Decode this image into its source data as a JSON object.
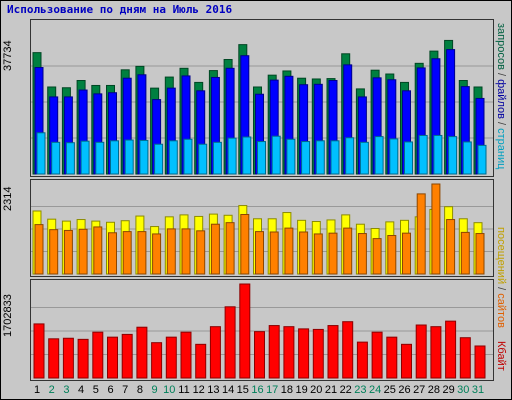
{
  "title": "Использование по дням на Июль 2016",
  "legend": {
    "top": [
      {
        "text": "запросов",
        "color": "#006040"
      },
      {
        "text": " / ",
        "color": "#404040"
      },
      {
        "text": "файлов",
        "color": "#0000a0"
      },
      {
        "text": " / ",
        "color": "#404040"
      },
      {
        "text": "страниц",
        "color": "#00a0c0"
      }
    ],
    "mid": [
      {
        "text": "посещений",
        "color": "#c0a000"
      },
      {
        "text": " / ",
        "color": "#404040"
      },
      {
        "text": "сайтов",
        "color": "#e06000"
      }
    ],
    "bot": [
      {
        "text": "Кбайт",
        "color": "#c00000"
      }
    ]
  },
  "colors": {
    "hits": "#008040",
    "files": "#0000ff",
    "pages": "#00c0ff",
    "visits": "#ffff00",
    "sites": "#ff8000",
    "kbytes": "#ff0000",
    "weekday_label": "#000000",
    "weekend_label": "#00805a"
  },
  "chart_data": [
    {
      "type": "bar",
      "name": "hits / files / pages",
      "ymax_label": "37734",
      "ylim": [
        0,
        37734
      ],
      "categories": [
        "1",
        "2",
        "3",
        "4",
        "5",
        "6",
        "7",
        "8",
        "9",
        "10",
        "11",
        "12",
        "13",
        "14",
        "15",
        "16",
        "17",
        "18",
        "19",
        "20",
        "21",
        "22",
        "23",
        "24",
        "25",
        "26",
        "27",
        "28",
        "29",
        "30",
        "31"
      ],
      "weekend": [
        false,
        true,
        true,
        false,
        false,
        false,
        false,
        false,
        true,
        true,
        false,
        false,
        false,
        false,
        false,
        true,
        true,
        false,
        false,
        false,
        false,
        false,
        true,
        true,
        false,
        false,
        false,
        false,
        false,
        true,
        true
      ],
      "series": [
        {
          "name": "запросов",
          "values": [
            31800,
            22800,
            22600,
            24500,
            23200,
            23200,
            27300,
            28200,
            22500,
            25400,
            27700,
            24000,
            27100,
            30000,
            33900,
            22800,
            25900,
            27000,
            25100,
            24900,
            25000,
            31500,
            22300,
            27200,
            26200,
            24000,
            29000,
            32200,
            35000,
            24500,
            22800
          ]
        },
        {
          "name": "файлов",
          "values": [
            27900,
            20200,
            20200,
            22000,
            21000,
            21300,
            25100,
            26000,
            19500,
            22500,
            25700,
            21800,
            25300,
            27700,
            31000,
            20900,
            24600,
            25600,
            23400,
            23500,
            24500,
            28600,
            20200,
            25200,
            24700,
            21800,
            27800,
            30200,
            32600,
            22900,
            19800
          ]
        },
        {
          "name": "страниц",
          "values": [
            10800,
            8300,
            8200,
            8600,
            8300,
            8700,
            8900,
            8800,
            7800,
            8700,
            9100,
            7800,
            8300,
            9400,
            9700,
            8500,
            9900,
            9100,
            8500,
            8700,
            8700,
            9500,
            8300,
            9800,
            9200,
            8400,
            10100,
            10100,
            9800,
            8400,
            7500
          ]
        }
      ]
    },
    {
      "type": "bar",
      "name": "visits / sites",
      "ymax_label": "2314",
      "ylim": [
        0,
        2314
      ],
      "categories": [
        "1",
        "2",
        "3",
        "4",
        "5",
        "6",
        "7",
        "8",
        "9",
        "10",
        "11",
        "12",
        "13",
        "14",
        "15",
        "16",
        "17",
        "18",
        "19",
        "20",
        "21",
        "22",
        "23",
        "24",
        "25",
        "26",
        "27",
        "28",
        "29",
        "30",
        "31"
      ],
      "series": [
        {
          "name": "посещений",
          "values": [
            1620,
            1410,
            1360,
            1400,
            1360,
            1330,
            1370,
            1490,
            1220,
            1470,
            1520,
            1480,
            1540,
            1510,
            1760,
            1420,
            1420,
            1580,
            1380,
            1350,
            1390,
            1520,
            1280,
            1170,
            1340,
            1380,
            1470,
            1660,
            1730,
            1420,
            1320
          ]
        },
        {
          "name": "сайтов",
          "values": [
            1270,
            1140,
            1120,
            1150,
            1210,
            1060,
            1090,
            1090,
            1030,
            1160,
            1160,
            1110,
            1280,
            1320,
            1530,
            1090,
            1080,
            1180,
            1080,
            1030,
            1050,
            1180,
            1040,
            910,
            990,
            1050,
            2060,
            2314,
            1400,
            1070,
            1040
          ]
        }
      ]
    },
    {
      "type": "bar",
      "name": "kbytes",
      "ymax_label": "1702833",
      "ylim": [
        0,
        1702833
      ],
      "categories": [
        "1",
        "2",
        "3",
        "4",
        "5",
        "6",
        "7",
        "8",
        "9",
        "10",
        "11",
        "12",
        "13",
        "14",
        "15",
        "16",
        "17",
        "18",
        "19",
        "20",
        "21",
        "22",
        "23",
        "24",
        "25",
        "26",
        "27",
        "28",
        "29",
        "30",
        "31"
      ],
      "series": [
        {
          "name": "Кбайт",
          "values": [
            980000,
            710000,
            720000,
            700000,
            830000,
            740000,
            790000,
            920000,
            640000,
            740000,
            830000,
            610000,
            930000,
            1290000,
            1702833,
            840000,
            950000,
            930000,
            890000,
            880000,
            950000,
            1020000,
            650000,
            830000,
            740000,
            610000,
            960000,
            930000,
            1030000,
            730000,
            580000
          ]
        }
      ]
    }
  ]
}
